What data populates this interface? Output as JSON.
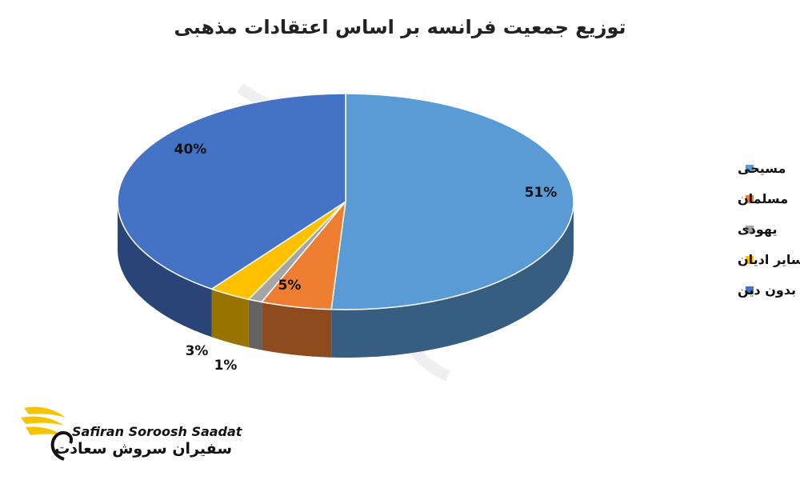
{
  "chart_data": {
    "type": "pie",
    "title": "توزیع جمعیت فرانسه بر اساس اعتقادات مذهبی",
    "categories": [
      "مسیحی",
      "مسلمان",
      "یهودی",
      "سایر ادیان",
      "بدون دین"
    ],
    "values": [
      51,
      5,
      1,
      3,
      40
    ],
    "data_labels": [
      "51%",
      "5%",
      "1%",
      "3%",
      "40%"
    ],
    "colors": [
      "#5B9BD5",
      "#ED7D31",
      "#A5A5A5",
      "#FFC000",
      "#4472C4"
    ],
    "legend_position": "right",
    "style": "3d"
  },
  "brand": {
    "name_latin": "Safiran Soroosh Saadat",
    "name_persian": "سفیران سروش سعادت",
    "accent_color": "#F5C400"
  }
}
